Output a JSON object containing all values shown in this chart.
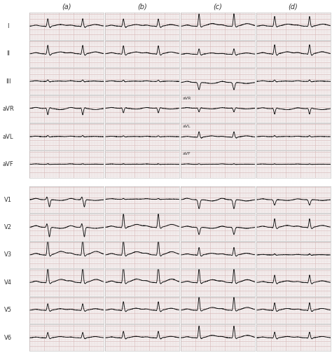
{
  "columns": [
    "(a)",
    "(b)",
    "(c)",
    "(d)"
  ],
  "rows": [
    "I",
    "II",
    "III",
    "aVR",
    "aVL",
    "aVF",
    "V1",
    "V2",
    "V3",
    "V4",
    "V5",
    "V6"
  ],
  "bg_color": "#f5f0f0",
  "grid_minor_color": "#e8d8d8",
  "grid_major_color": "#d8b8b8",
  "ecg_color": "#111111",
  "label_color": "#444444",
  "figsize": [
    4.74,
    5.04
  ],
  "dpi": 100
}
